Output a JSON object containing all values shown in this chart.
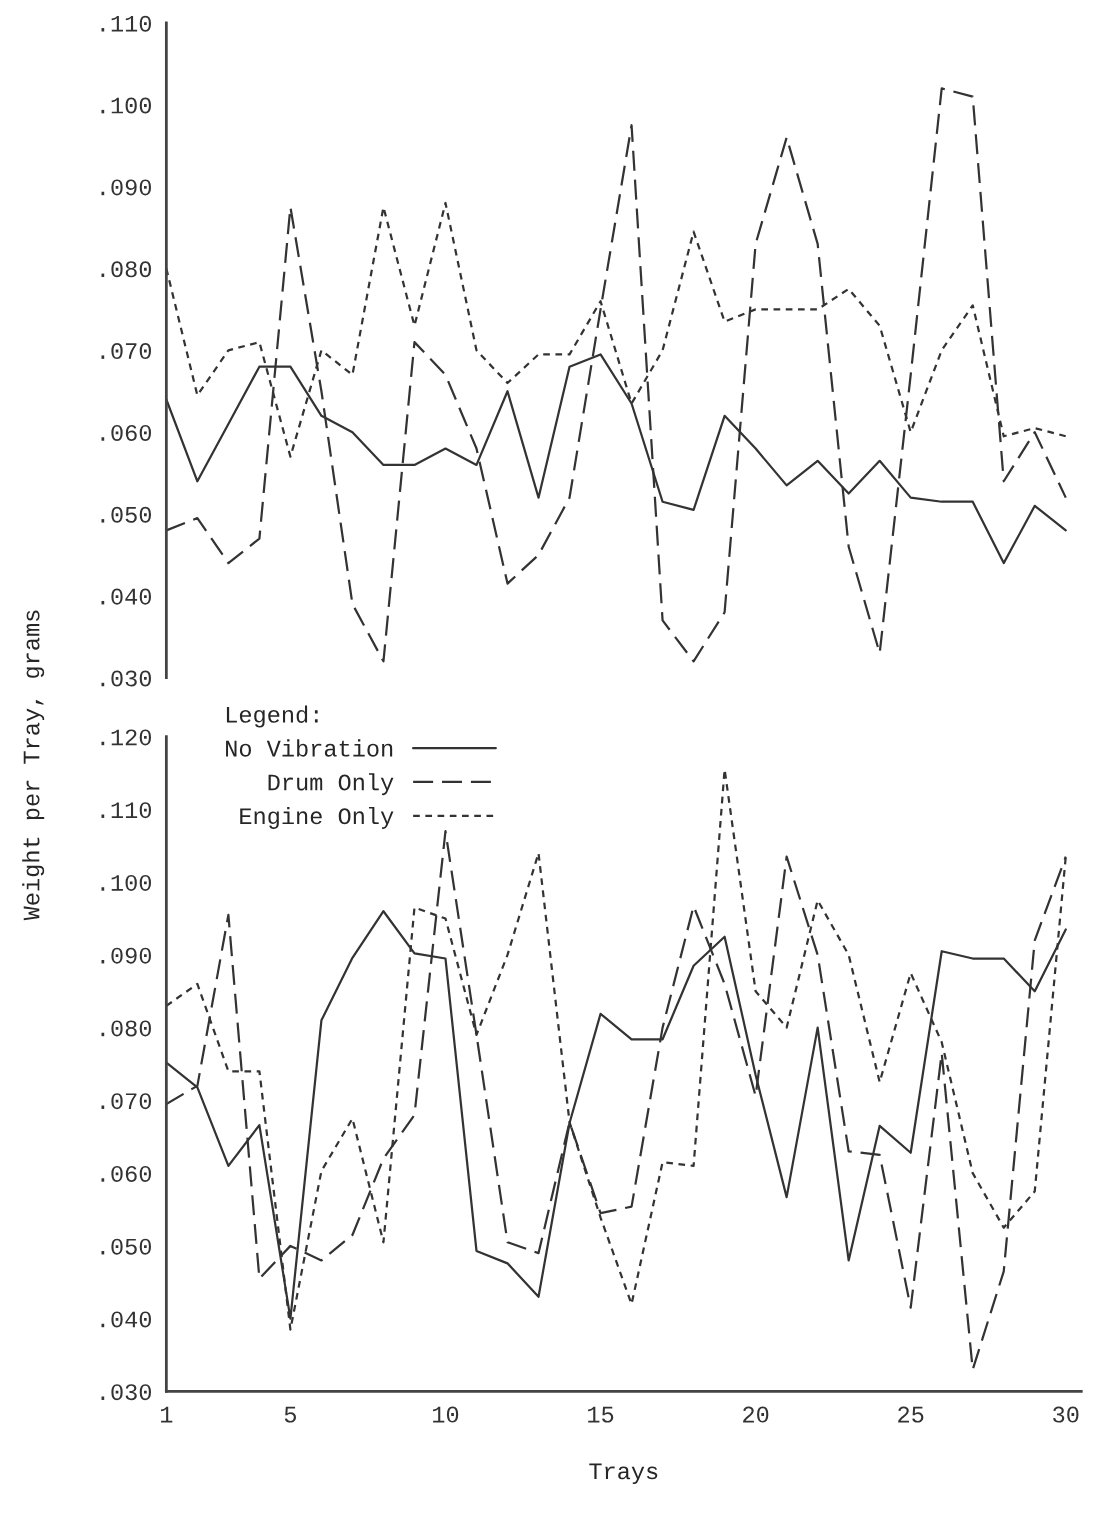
{
  "chart_data": [
    {
      "type": "line",
      "x": [
        1,
        2,
        3,
        4,
        5,
        6,
        7,
        8,
        9,
        10,
        11,
        12,
        13,
        14,
        15,
        16,
        17,
        18,
        19,
        20,
        21,
        22,
        23,
        24,
        25,
        26,
        27,
        28,
        29,
        30
      ],
      "ylim": [
        0.03,
        0.11
      ],
      "yticks": [
        {
          "value": 0.03,
          "label": ".030"
        },
        {
          "value": 0.04,
          "label": ".040"
        },
        {
          "value": 0.05,
          "label": ".050"
        },
        {
          "value": 0.06,
          "label": ".060"
        },
        {
          "value": 0.07,
          "label": ".070"
        },
        {
          "value": 0.08,
          "label": ".080"
        },
        {
          "value": 0.09,
          "label": ".090"
        },
        {
          "value": 0.1,
          "label": ".100"
        },
        {
          "value": 0.11,
          "label": ".110"
        }
      ],
      "tick_labels": "y",
      "grid": false,
      "legend": false,
      "series": [
        {
          "color": "#333333",
          "line_style": "solid",
          "values": [
            0.064,
            0.054,
            0.061,
            0.068,
            0.068,
            0.062,
            0.06,
            0.056,
            0.056,
            0.058,
            0.056,
            0.065,
            0.052,
            0.068,
            0.0695,
            0.0635,
            0.0515,
            0.0505,
            0.062,
            0.058,
            0.0535,
            0.0565,
            0.0525,
            0.0565,
            0.052,
            0.0515,
            0.0515,
            0.044,
            0.051,
            0.048
          ]
        },
        {
          "color": "#333333",
          "line_style": "dashed",
          "values": [
            0.048,
            0.0495,
            0.044,
            0.047,
            0.0875,
            0.065,
            0.039,
            0.032,
            0.071,
            0.067,
            0.058,
            0.0415,
            0.045,
            0.052,
            0.075,
            0.0975,
            0.037,
            0.032,
            0.038,
            0.083,
            0.096,
            0.083,
            0.046,
            0.033,
            0.067,
            0.102,
            0.101,
            0.054,
            0.06,
            0.052
          ]
        },
        {
          "color": "#333333",
          "line_style": "dotted",
          "values": [
            0.08,
            0.0645,
            0.07,
            0.071,
            0.057,
            0.07,
            0.067,
            0.0875,
            0.073,
            0.088,
            0.07,
            0.066,
            0.0695,
            0.0695,
            0.076,
            0.0635,
            0.07,
            0.0845,
            0.0735,
            0.075,
            0.075,
            0.075,
            0.0775,
            0.073,
            0.06,
            0.07,
            0.0755,
            0.0595,
            0.0605,
            0.0595
          ]
        }
      ]
    },
    {
      "type": "line",
      "x": [
        1,
        2,
        3,
        4,
        5,
        6,
        7,
        8,
        9,
        10,
        11,
        12,
        13,
        14,
        15,
        16,
        17,
        18,
        19,
        20,
        21,
        22,
        23,
        24,
        25,
        26,
        27,
        28,
        29,
        30
      ],
      "xlim": [
        1,
        30.5
      ],
      "ylim": [
        0.03,
        0.12
      ],
      "xticks": [
        1,
        5,
        10,
        15,
        20,
        25,
        30
      ],
      "yticks": [
        {
          "value": 0.03,
          "label": ".030"
        },
        {
          "value": 0.04,
          "label": ".040"
        },
        {
          "value": 0.05,
          "label": ".050"
        },
        {
          "value": 0.06,
          "label": ".060"
        },
        {
          "value": 0.07,
          "label": ".070"
        },
        {
          "value": 0.08,
          "label": ".080"
        },
        {
          "value": 0.09,
          "label": ".090"
        },
        {
          "value": 0.1,
          "label": ".100"
        },
        {
          "value": 0.11,
          "label": ".110"
        },
        {
          "value": 0.12,
          "label": ".120"
        }
      ],
      "xlabel": "Trays",
      "ylabel": "Weight per Tray, grams",
      "legend_title": "Legend:",
      "legend": "top left",
      "grid": false,
      "series": [
        {
          "name": "No Vibration",
          "color": "#333333",
          "line_style": "solid",
          "values": [
            0.0752,
            0.0718,
            0.061,
            0.0666,
            0.04,
            0.081,
            0.0896,
            0.096,
            0.0902,
            0.0895,
            0.0493,
            0.0476,
            0.043,
            0.0669,
            0.0819,
            0.0784,
            0.0784,
            0.0885,
            0.0925,
            0.0735,
            0.0567,
            0.08,
            0.048,
            0.0665,
            0.0628,
            0.0905,
            0.0895,
            0.0895,
            0.085,
            0.0935
          ]
        },
        {
          "name": "Drum Only",
          "color": "#333333",
          "line_style": "dashed",
          "values": [
            0.0695,
            0.072,
            0.0955,
            0.0455,
            0.05,
            0.048,
            0.0515,
            0.062,
            0.068,
            0.107,
            0.079,
            0.0505,
            0.049,
            0.067,
            0.0545,
            0.0554,
            0.08,
            0.0967,
            0.086,
            0.0706,
            0.1035,
            0.09,
            0.063,
            0.0625,
            0.0415,
            0.0765,
            0.033,
            0.0465,
            0.092,
            0.1035
          ]
        },
        {
          "name": "Engine Only",
          "color": "#333333",
          "line_style": "dotted",
          "values": [
            0.083,
            0.086,
            0.074,
            0.074,
            0.0385,
            0.0603,
            0.0675,
            0.0505,
            0.0965,
            0.095,
            0.079,
            0.09,
            0.104,
            0.067,
            0.0539,
            0.042,
            0.0615,
            0.061,
            0.1155,
            0.085,
            0.08,
            0.0975,
            0.09,
            0.0725,
            0.0875,
            0.078,
            0.06,
            0.0525,
            0.0575,
            0.1035
          ]
        }
      ]
    }
  ]
}
